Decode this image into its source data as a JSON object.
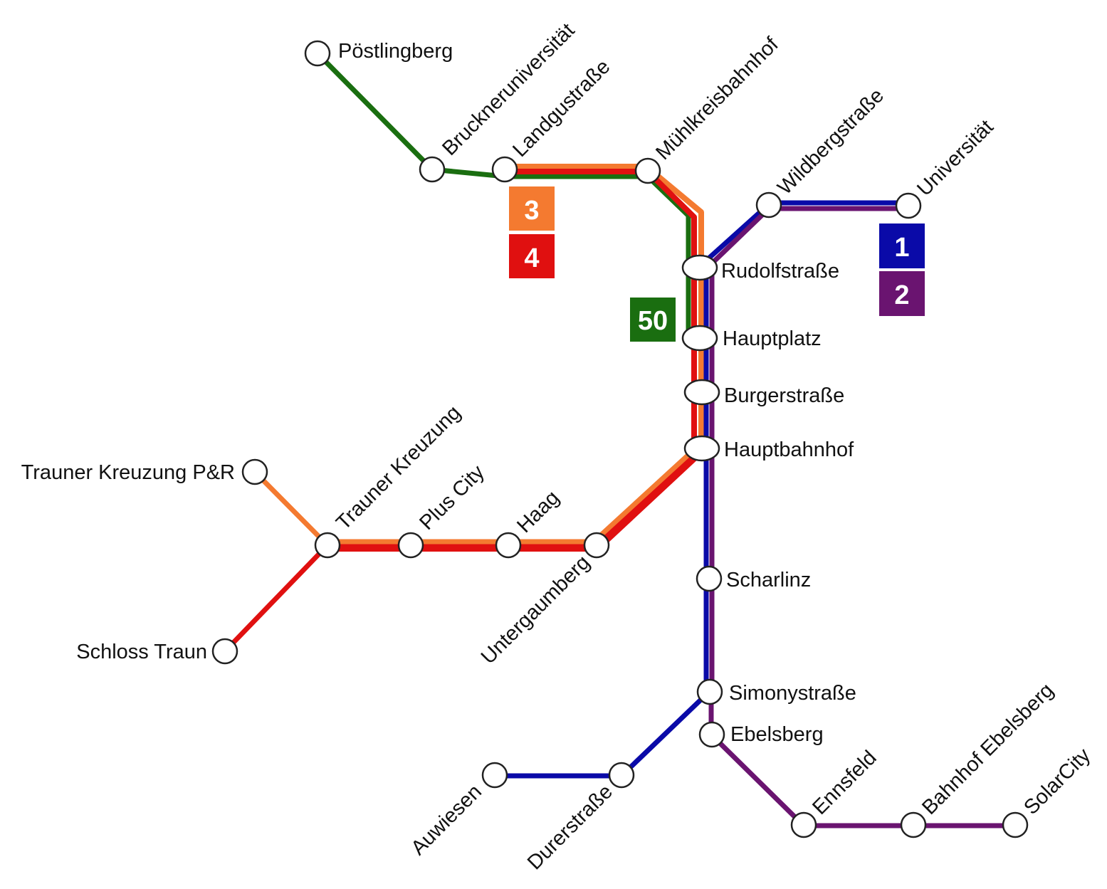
{
  "colors": {
    "line_1": "#0a0aa8",
    "line_2": "#6a1470",
    "line_3": "#f47a30",
    "line_4": "#e01010",
    "line_50": "#1a6e10"
  },
  "lines": [
    {
      "id": "line_1",
      "label": "1"
    },
    {
      "id": "line_2",
      "label": "2"
    },
    {
      "id": "line_3",
      "label": "3"
    },
    {
      "id": "line_4",
      "label": "4"
    },
    {
      "id": "line_50",
      "label": "50"
    }
  ],
  "stations": {
    "poestlingberg": "Pöstlingberg",
    "bruckneruniversitaet": "Bruckneruniversität",
    "landgutstrasse": "Landgustraße",
    "muehlkreisbahnhof": "Mühlkreisbahnhof",
    "wildbergstrasse": "Wildbergstraße",
    "universitaet": "Universität",
    "rudolfstrasse": "Rudolfstraße",
    "hauptplatz": "Hauptplatz",
    "burgerstrasse": "Burgerstraße",
    "hauptbahnhof": "Hauptbahnhof",
    "trauner_kreuzung_pr": "Trauner Kreuzung P&R",
    "trauner_kreuzung": "Trauner Kreuzung",
    "plus_city": "Plus City",
    "haag": "Haag",
    "untergaumberg": "Untergaumberg",
    "schloss_traun": "Schloss Traun",
    "scharlinz": "Scharlinz",
    "simonystrasse": "Simonystraße",
    "ebelsberg": "Ebelsberg",
    "auwiesen": "Auwiesen",
    "durerstrasse": "Durerstraße",
    "ennsfeld": "Ennsfeld",
    "bahnhof_ebelsberg": "Bahnhof Ebelsberg",
    "solarcity": "SolarCity"
  }
}
